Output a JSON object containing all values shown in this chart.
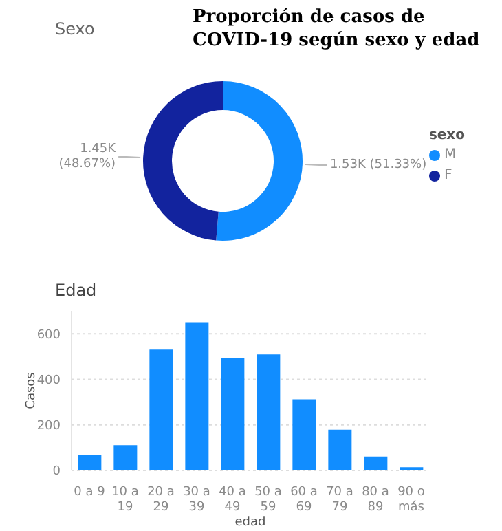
{
  "chart_data": [
    {
      "type": "donut",
      "title": "Proporción de casos de COVID-19 según sexo y edad",
      "subtitle": "Sexo",
      "categories": [
        "M",
        "F"
      ],
      "values": [
        1530,
        1450
      ],
      "colors": [
        "#118dff",
        "#12239e"
      ],
      "value_labels": [
        "1.53K (51.33%)",
        "1.45K (48.67%)"
      ],
      "legend_title": "sexo",
      "legend": "right"
    },
    {
      "type": "bar",
      "title": "Edad",
      "xlabel": "edad",
      "ylabel": "Casos",
      "categories": [
        "0 a 9",
        "10 a 19",
        "20 a 29",
        "30 a 39",
        "40 a 49",
        "50 a 59",
        "60 a 69",
        "70 a 79",
        "80 a 89",
        "90 o más"
      ],
      "values": [
        68,
        111,
        530,
        650,
        494,
        509,
        312,
        179,
        61,
        14
      ],
      "color": "#118dff",
      "ylim": [
        0,
        700
      ],
      "yticks": [
        0,
        200,
        400,
        600
      ],
      "grid": "y"
    }
  ]
}
